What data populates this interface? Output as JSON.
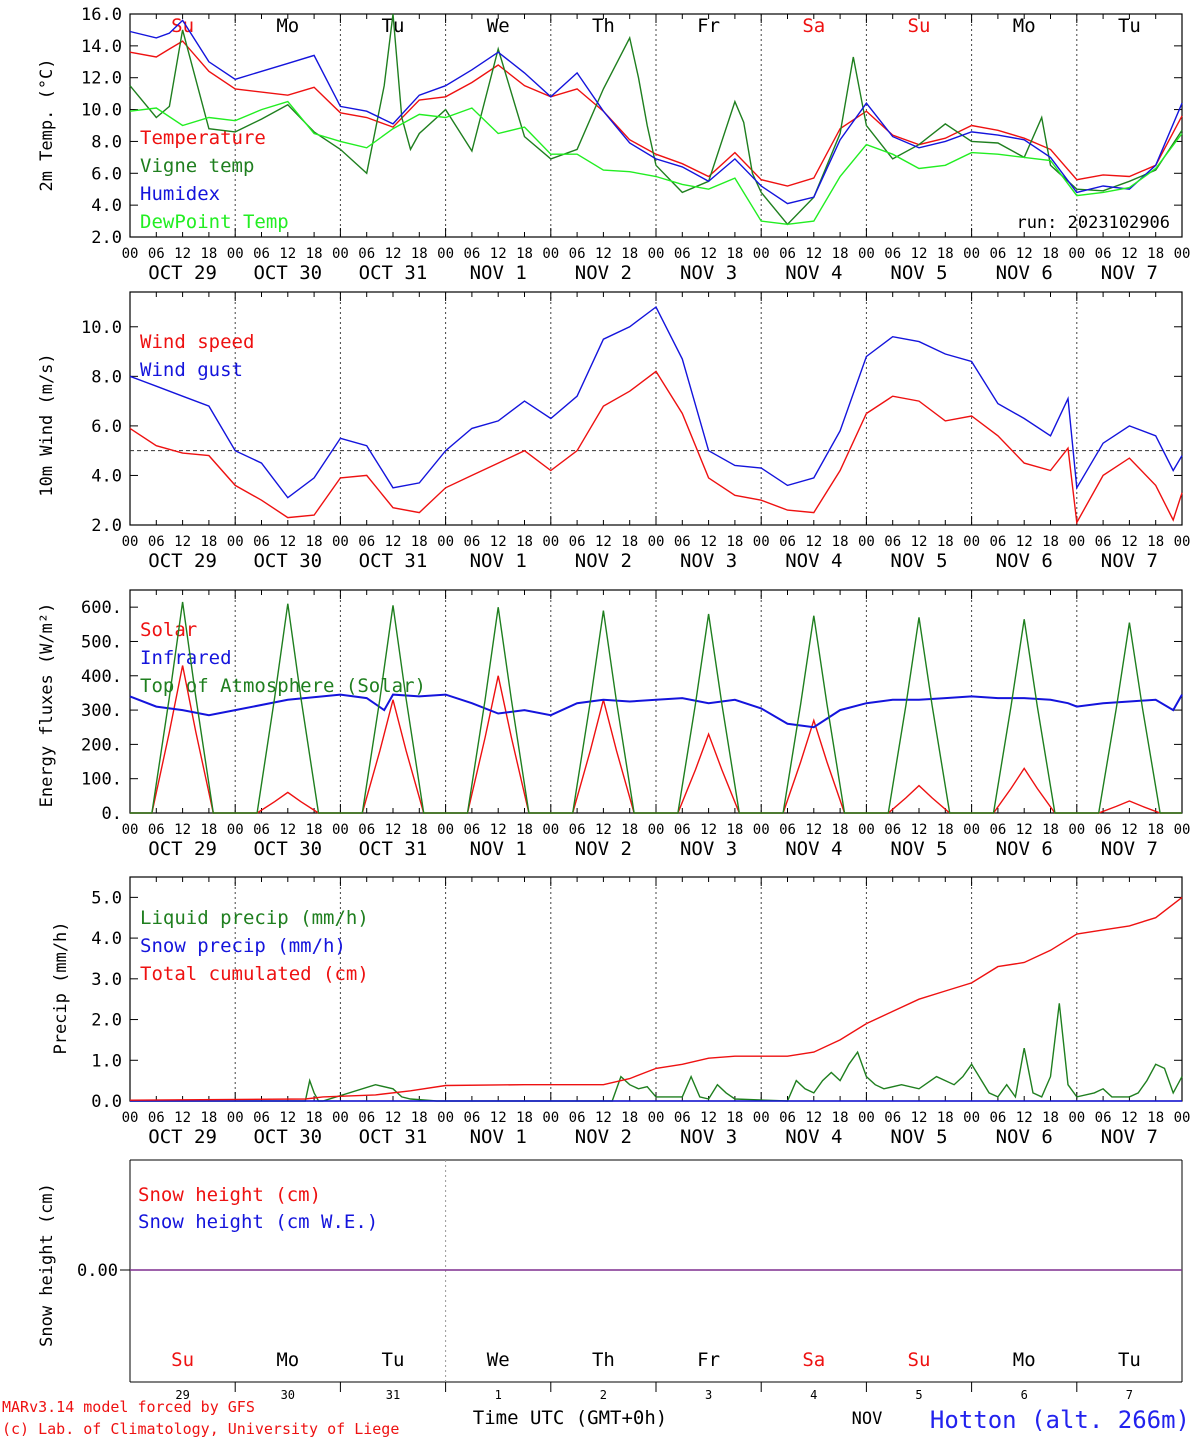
{
  "meteogram": {
    "days": [
      "Su",
      "Mo",
      "Tu",
      "We",
      "Th",
      "Fr",
      "Sa",
      "Su",
      "Mo",
      "Tu"
    ],
    "weekend_flags": [
      true,
      false,
      false,
      false,
      false,
      false,
      true,
      true,
      false,
      false
    ],
    "date_labels": [
      "OCT 29",
      "OCT 30",
      "OCT 31",
      "NOV  1",
      "NOV  2",
      "NOV  3",
      "NOV  4",
      "NOV  5",
      "NOV  6",
      "NOV  7"
    ],
    "hour_ticks": [
      "00",
      "06",
      "12",
      "18"
    ],
    "final_hour_tick": "00",
    "bottom_day_numbers": [
      "29",
      "30",
      "31",
      "1",
      "2",
      "3",
      "4",
      "5",
      "6",
      "7"
    ],
    "bottom_month": "NOV",
    "x_axis_title": "Time UTC (GMT+0h)",
    "run_label": "run: 2023102906",
    "station": "Hotton (alt. 266m)",
    "credits": [
      "MARv3.14 model forced by GFS",
      "(c) Lab. of Climatology, University of Liege"
    ],
    "colors": {
      "red": "#ee1111",
      "darkgreen": "#1f7f1f",
      "blue": "#1414dc",
      "lightgreen": "#22ee22",
      "purple": "#7f2f8f",
      "axis": "#000000",
      "weekend": "#ee1111",
      "station": "#2222ee"
    }
  },
  "chart_data": [
    {
      "type": "line",
      "ylabel": "2m Temp. (°C)",
      "ylim": [
        2,
        16
      ],
      "yticks": [
        "2.0",
        "4.0",
        "6.0",
        "8.0",
        "10.0",
        "12.0",
        "14.0",
        "16.0"
      ],
      "x_unit": "hours since 2023-10-29 00 UTC",
      "xlim": [
        0,
        240
      ],
      "series": [
        {
          "name": "Temperature",
          "color": "red",
          "x": [
            0,
            6,
            9,
            12,
            18,
            24,
            36,
            42,
            48,
            54,
            60,
            66,
            72,
            78,
            84,
            90,
            96,
            102,
            108,
            114,
            120,
            126,
            132,
            138,
            144,
            150,
            156,
            162,
            168,
            174,
            180,
            186,
            192,
            198,
            204,
            210,
            216,
            222,
            228,
            234,
            240
          ],
          "values": [
            13.6,
            13.3,
            13.8,
            14.3,
            12.4,
            11.3,
            10.9,
            11.4,
            9.8,
            9.5,
            8.9,
            10.6,
            10.8,
            11.7,
            12.8,
            11.5,
            10.8,
            11.3,
            9.9,
            8.1,
            7.2,
            6.6,
            5.8,
            7.3,
            5.6,
            5.2,
            5.7,
            8.8,
            9.9,
            8.4,
            7.8,
            8.2,
            9.0,
            8.7,
            8.2,
            7.5,
            5.6,
            5.9,
            5.8,
            6.5,
            9.6
          ]
        },
        {
          "name": "Vigne temp",
          "color": "darkgreen",
          "x": [
            0,
            6,
            9,
            12,
            18,
            24,
            30,
            36,
            42,
            48,
            54,
            58,
            60,
            62,
            64,
            66,
            72,
            78,
            84,
            90,
            96,
            102,
            108,
            114,
            116,
            118,
            120,
            126,
            132,
            138,
            140,
            142,
            144,
            150,
            156,
            162,
            165,
            168,
            174,
            180,
            186,
            192,
            198,
            204,
            208,
            210,
            212,
            216,
            222,
            228,
            234,
            240
          ],
          "values": [
            11.5,
            9.5,
            10.2,
            15.0,
            8.8,
            8.6,
            9.4,
            10.3,
            8.6,
            7.5,
            6.0,
            11.5,
            16.5,
            9.5,
            7.5,
            8.5,
            10.0,
            7.4,
            13.8,
            8.3,
            6.9,
            7.5,
            11.3,
            14.5,
            12.0,
            9.0,
            6.5,
            4.8,
            5.5,
            10.5,
            9.2,
            6.0,
            4.8,
            2.8,
            4.5,
            8.5,
            13.3,
            9.0,
            6.9,
            7.8,
            9.1,
            8.0,
            7.9,
            7.0,
            9.5,
            6.5,
            6.0,
            5.0,
            4.9,
            5.5,
            6.2,
            8.7
          ]
        },
        {
          "name": "Humidex",
          "color": "blue",
          "x": [
            0,
            6,
            9,
            12,
            18,
            24,
            36,
            42,
            48,
            54,
            60,
            66,
            72,
            78,
            84,
            90,
            96,
            102,
            108,
            114,
            120,
            126,
            132,
            138,
            144,
            150,
            156,
            162,
            168,
            174,
            180,
            186,
            192,
            198,
            204,
            210,
            216,
            222,
            228,
            234,
            240
          ],
          "values": [
            14.9,
            14.5,
            14.8,
            15.6,
            13.0,
            11.9,
            12.9,
            13.4,
            10.2,
            9.9,
            9.1,
            10.9,
            11.5,
            12.5,
            13.6,
            12.3,
            10.8,
            12.3,
            9.9,
            7.9,
            6.9,
            6.4,
            5.5,
            6.9,
            5.2,
            4.1,
            4.5,
            8.1,
            10.4,
            8.3,
            7.6,
            8.0,
            8.6,
            8.4,
            8.1,
            7.0,
            4.8,
            5.2,
            5.0,
            6.5,
            10.4
          ]
        },
        {
          "name": "DewPoint Temp",
          "color": "lightgreen",
          "x": [
            0,
            6,
            12,
            18,
            24,
            30,
            36,
            42,
            48,
            54,
            60,
            66,
            72,
            78,
            84,
            90,
            96,
            102,
            108,
            114,
            120,
            126,
            132,
            138,
            144,
            150,
            156,
            162,
            168,
            174,
            180,
            186,
            192,
            198,
            204,
            210,
            216,
            222,
            228,
            234,
            240
          ],
          "values": [
            9.9,
            10.1,
            9.0,
            9.5,
            9.3,
            10.0,
            10.5,
            8.5,
            8.0,
            7.6,
            8.8,
            9.7,
            9.5,
            10.1,
            8.5,
            8.9,
            7.2,
            7.2,
            6.2,
            6.1,
            5.8,
            5.3,
            5.0,
            5.7,
            3.0,
            2.8,
            3.0,
            5.8,
            7.8,
            7.2,
            6.3,
            6.5,
            7.3,
            7.2,
            7.0,
            6.8,
            4.6,
            4.8,
            5.1,
            6.3,
            8.5
          ]
        }
      ]
    },
    {
      "type": "line",
      "ylabel": "10m Wind (m/s)",
      "ylim": [
        2,
        11
      ],
      "yticks": [
        "2.0",
        "4.0",
        "6.0",
        "8.0",
        "10.0"
      ],
      "reference_line": 5,
      "xlim": [
        0,
        240
      ],
      "series": [
        {
          "name": "Wind speed",
          "color": "red",
          "x": [
            0,
            6,
            12,
            18,
            24,
            30,
            36,
            42,
            48,
            54,
            60,
            66,
            72,
            78,
            84,
            90,
            96,
            102,
            108,
            114,
            120,
            126,
            132,
            138,
            144,
            150,
            156,
            162,
            168,
            174,
            180,
            186,
            192,
            198,
            204,
            210,
            214,
            216,
            222,
            228,
            234,
            238,
            240
          ],
          "values": [
            5.9,
            5.2,
            4.9,
            4.8,
            3.6,
            3.0,
            2.3,
            2.4,
            3.9,
            4.0,
            2.7,
            2.5,
            3.5,
            4.0,
            4.5,
            5.0,
            4.2,
            5.0,
            6.8,
            7.4,
            8.2,
            6.5,
            3.9,
            3.2,
            3.0,
            2.6,
            2.5,
            4.2,
            6.5,
            7.2,
            7.0,
            6.2,
            6.4,
            5.6,
            4.5,
            4.2,
            5.1,
            2.1,
            4.0,
            4.7,
            3.6,
            2.2,
            3.3
          ]
        },
        {
          "name": "Wind gust",
          "color": "blue",
          "x": [
            0,
            6,
            12,
            18,
            24,
            30,
            36,
            42,
            48,
            54,
            60,
            66,
            72,
            78,
            84,
            90,
            96,
            102,
            108,
            114,
            120,
            126,
            132,
            138,
            144,
            150,
            156,
            162,
            168,
            174,
            180,
            186,
            192,
            198,
            204,
            210,
            214,
            216,
            222,
            228,
            234,
            238,
            240
          ],
          "values": [
            8.0,
            7.6,
            7.2,
            6.8,
            5.0,
            4.5,
            3.1,
            3.9,
            5.5,
            5.2,
            3.5,
            3.7,
            5.0,
            5.9,
            6.2,
            7.0,
            6.3,
            7.2,
            9.5,
            10.0,
            10.8,
            8.7,
            5.0,
            4.4,
            4.3,
            3.6,
            3.9,
            5.8,
            8.8,
            9.6,
            9.4,
            8.9,
            8.6,
            6.9,
            6.3,
            5.6,
            7.1,
            3.5,
            5.3,
            6.0,
            5.6,
            4.2,
            4.8
          ]
        }
      ]
    },
    {
      "type": "line",
      "ylabel": "Energy fluxes (W/m²)",
      "ylim": [
        0,
        650
      ],
      "yticks": [
        "0.",
        "100.",
        "200.",
        "300.",
        "400.",
        "500.",
        "600."
      ],
      "xlim": [
        0,
        240
      ],
      "series": [
        {
          "name": "Solar",
          "color": "red",
          "peaks": [
            {
              "x": 12,
              "y": 430
            },
            {
              "x": 36,
              "y": 60
            },
            {
              "x": 60,
              "y": 330
            },
            {
              "x": 84,
              "y": 400
            },
            {
              "x": 108,
              "y": 330
            },
            {
              "x": 132,
              "y": 230
            },
            {
              "x": 156,
              "y": 270
            },
            {
              "x": 180,
              "y": 80
            },
            {
              "x": 204,
              "y": 130
            },
            {
              "x": 228,
              "y": 35
            }
          ]
        },
        {
          "name": "Infrared",
          "color": "blue",
          "x": [
            0,
            6,
            12,
            18,
            24,
            36,
            48,
            54,
            58,
            60,
            66,
            72,
            78,
            84,
            90,
            96,
            102,
            108,
            114,
            120,
            126,
            132,
            138,
            144,
            150,
            156,
            162,
            168,
            174,
            180,
            186,
            192,
            198,
            204,
            210,
            214,
            216,
            222,
            228,
            234,
            238,
            240
          ],
          "values": [
            340,
            310,
            300,
            285,
            300,
            330,
            345,
            335,
            300,
            345,
            340,
            345,
            320,
            290,
            300,
            285,
            320,
            330,
            325,
            330,
            335,
            320,
            330,
            305,
            260,
            250,
            300,
            320,
            330,
            330,
            335,
            340,
            335,
            335,
            330,
            320,
            310,
            320,
            325,
            330,
            300,
            345
          ]
        },
        {
          "name": "Top of Atmosphere (Solar)",
          "color": "darkgreen",
          "peaks": [
            {
              "x": 12,
              "y": 615
            },
            {
              "x": 36,
              "y": 610
            },
            {
              "x": 60,
              "y": 605
            },
            {
              "x": 84,
              "y": 600
            },
            {
              "x": 108,
              "y": 590
            },
            {
              "x": 132,
              "y": 580
            },
            {
              "x": 156,
              "y": 575
            },
            {
              "x": 180,
              "y": 570
            },
            {
              "x": 204,
              "y": 565
            },
            {
              "x": 228,
              "y": 555
            }
          ]
        }
      ]
    },
    {
      "type": "line",
      "ylabel": "Precip (mm/h)",
      "ylim": [
        0,
        5.5
      ],
      "yticks": [
        "0.0",
        "1.0",
        "2.0",
        "3.0",
        "4.0",
        "5.0"
      ],
      "xlim": [
        0,
        240
      ],
      "series": [
        {
          "name": "Liquid precip (mm/h)",
          "color": "darkgreen",
          "x": [
            0,
            40,
            41,
            42,
            43,
            44,
            56,
            60,
            62,
            64,
            70,
            110,
            112,
            114,
            116,
            118,
            120,
            126,
            128,
            130,
            132,
            134,
            136,
            138,
            150,
            152,
            154,
            156,
            158,
            160,
            162,
            164,
            166,
            168,
            170,
            172,
            176,
            180,
            184,
            188,
            190,
            192,
            196,
            198,
            200,
            202,
            204,
            206,
            208,
            210,
            212,
            214,
            216,
            220,
            222,
            224,
            228,
            230,
            232,
            234,
            236,
            238,
            240
          ],
          "values": [
            0,
            0,
            0.5,
            0.2,
            0,
            0,
            0.4,
            0.3,
            0.1,
            0.05,
            0,
            0,
            0.6,
            0.4,
            0.3,
            0.35,
            0.1,
            0.1,
            0.6,
            0.1,
            0.05,
            0.4,
            0.2,
            0.05,
            0,
            0.5,
            0.3,
            0.2,
            0.5,
            0.7,
            0.5,
            0.9,
            1.2,
            0.6,
            0.4,
            0.3,
            0.4,
            0.3,
            0.6,
            0.4,
            0.6,
            0.9,
            0.2,
            0.1,
            0.4,
            0.1,
            1.3,
            0.2,
            0.1,
            0.6,
            2.4,
            0.4,
            0.1,
            0.2,
            0.3,
            0.1,
            0.1,
            0.2,
            0.5,
            0.9,
            0.8,
            0.2,
            0.6
          ]
        },
        {
          "name": "Snow precip (mm/h)",
          "color": "blue",
          "x": [
            0,
            240
          ],
          "values": [
            0,
            0
          ]
        },
        {
          "name": "Total cumulated (cm)",
          "color": "red",
          "x": [
            0,
            40,
            44,
            56,
            64,
            72,
            90,
            108,
            114,
            120,
            126,
            132,
            138,
            150,
            156,
            162,
            168,
            174,
            180,
            186,
            192,
            198,
            204,
            210,
            216,
            222,
            228,
            234,
            240
          ],
          "values": [
            0.02,
            0.05,
            0.1,
            0.15,
            0.25,
            0.38,
            0.4,
            0.4,
            0.55,
            0.8,
            0.9,
            1.05,
            1.1,
            1.1,
            1.2,
            1.5,
            1.9,
            2.2,
            2.5,
            2.7,
            2.9,
            3.3,
            3.4,
            3.7,
            4.1,
            4.2,
            4.3,
            4.5,
            5.0
          ]
        }
      ]
    },
    {
      "type": "line",
      "ylabel": "Snow height (cm)",
      "yticks": [
        "0.00"
      ],
      "xlim": [
        0,
        240
      ],
      "series": [
        {
          "name": "Snow height (cm)",
          "color": "red",
          "x": [
            0,
            240
          ],
          "values": [
            0,
            0
          ]
        },
        {
          "name": "Snow height (cm W.E.)",
          "color": "blue",
          "x": [
            0,
            240
          ],
          "values": [
            0,
            0
          ]
        }
      ]
    }
  ]
}
